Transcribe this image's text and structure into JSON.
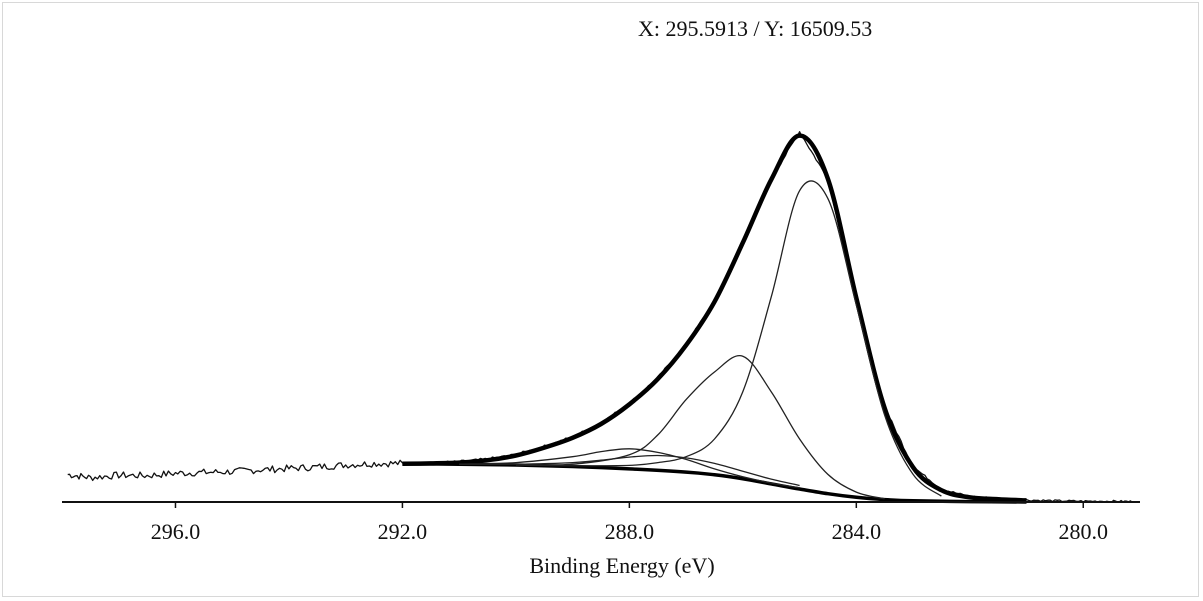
{
  "readout": {
    "text": "X: 295.5913 / Y: 16509.53"
  },
  "chart_data": {
    "type": "line",
    "title": "",
    "xlabel": "Binding Energy (eV)",
    "ylabel": "",
    "xlim": [
      298.0,
      279.0
    ],
    "x_reversed": true,
    "ylim": [
      0,
      100
    ],
    "x_ticks": [
      296.0,
      292.0,
      288.0,
      284.0,
      280.0
    ],
    "x_tick_labels": [
      "296.0",
      "292.0",
      "288.0",
      "284.0",
      "280.0"
    ],
    "grid": false,
    "legend": "none",
    "series": [
      {
        "role": "raw-data",
        "x": [
          297.9,
          297.5,
          297.0,
          296.5,
          296.0,
          295.5,
          295.0,
          294.5,
          294.0,
          293.5,
          293.0,
          292.5,
          292.0,
          291.5,
          291.0,
          290.5,
          290.0,
          289.5,
          289.0,
          288.5,
          288.0,
          287.5,
          287.0,
          286.5,
          286.0,
          285.5,
          285.0,
          284.5,
          284.0,
          283.5,
          283.0,
          282.5,
          282.0,
          281.5,
          281.0,
          280.5,
          280.0,
          279.5,
          279.1
        ],
        "y": [
          7.0,
          6.2,
          6.8,
          6.7,
          7.3,
          7.5,
          7.7,
          8.2,
          8.5,
          8.9,
          9.4,
          9.8,
          9.8,
          9.9,
          10.2,
          10.9,
          12.0,
          14.1,
          16.5,
          20.0,
          25.0,
          31.5,
          40.0,
          51.0,
          66.0,
          82.0,
          94.0,
          82.0,
          52.0,
          24.0,
          9.0,
          3.2,
          1.4,
          0.9,
          0.5,
          0.3,
          0.2,
          0.2,
          0.1
        ]
      },
      {
        "role": "envelope",
        "x": [
          292.0,
          291.5,
          291.0,
          290.5,
          290.0,
          289.5,
          289.0,
          288.5,
          288.0,
          287.5,
          287.0,
          286.5,
          286.0,
          285.5,
          285.0,
          284.5,
          284.0,
          283.5,
          283.0,
          282.5,
          282.0,
          281.5,
          281.0
        ],
        "y": [
          9.7,
          9.8,
          10.0,
          10.6,
          11.8,
          13.8,
          16.3,
          19.8,
          24.8,
          31.2,
          39.8,
          50.8,
          65.8,
          81.8,
          93.0,
          82.0,
          51.8,
          23.8,
          8.8,
          3.0,
          1.2,
          0.7,
          0.4
        ]
      },
      {
        "role": "background",
        "x": [
          292.0,
          291.0,
          290.0,
          289.0,
          288.0,
          287.0,
          286.5,
          286.0,
          285.5,
          285.0,
          284.5,
          284.0,
          283.5,
          283.0,
          282.0,
          281.0
        ],
        "y": [
          9.7,
          9.6,
          9.4,
          9.0,
          8.4,
          7.6,
          6.9,
          5.9,
          4.6,
          3.3,
          2.1,
          1.2,
          0.6,
          0.3,
          0.1,
          0.0
        ]
      },
      {
        "role": "component-1",
        "x": [
          290.0,
          289.0,
          288.0,
          287.5,
          287.0,
          286.5,
          286.0,
          285.5,
          285.0,
          284.5,
          284.0,
          283.5,
          283.0,
          282.5
        ],
        "y": [
          9.4,
          9.2,
          9.3,
          10.0,
          11.5,
          16.0,
          28.0,
          52.0,
          79.0,
          77.0,
          50.0,
          22.0,
          7.0,
          1.5
        ]
      },
      {
        "role": "component-2",
        "x": [
          290.0,
          289.0,
          288.0,
          287.5,
          287.0,
          286.5,
          286.0,
          285.5,
          285.0,
          284.5,
          284.0,
          283.5
        ],
        "y": [
          9.4,
          9.6,
          12.0,
          17.0,
          26.0,
          33.0,
          37.0,
          28.0,
          16.0,
          7.0,
          2.5,
          0.8
        ]
      },
      {
        "role": "component-3",
        "x": [
          291.0,
          290.0,
          289.0,
          288.5,
          288.0,
          287.5,
          287.0,
          286.5,
          286.0,
          285.5,
          285.0
        ],
        "y": [
          9.6,
          10.0,
          11.5,
          12.8,
          13.5,
          12.6,
          10.8,
          8.4,
          6.4,
          4.8,
          3.6
        ]
      },
      {
        "role": "component-4",
        "x": [
          291.0,
          290.0,
          289.0,
          288.5,
          288.0,
          287.5,
          287.0,
          286.5,
          286.0,
          285.5,
          285.0
        ],
        "y": [
          9.6,
          9.6,
          10.0,
          10.6,
          11.4,
          11.8,
          11.2,
          9.8,
          7.8,
          5.8,
          4.2
        ]
      }
    ]
  }
}
